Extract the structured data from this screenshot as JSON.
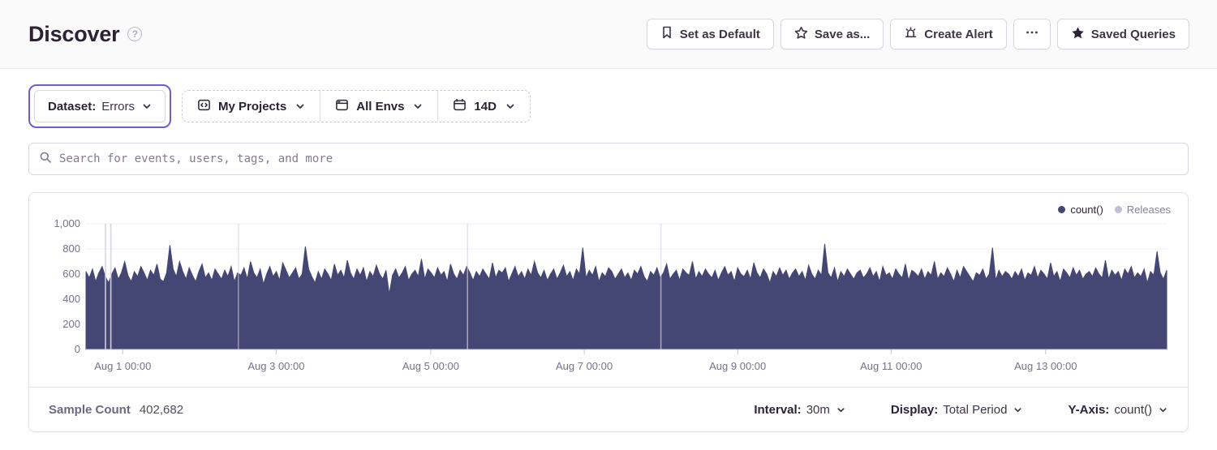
{
  "header": {
    "title": "Discover",
    "actions": [
      {
        "label": "Set as Default",
        "icon": "bookmark"
      },
      {
        "label": "Save as...",
        "icon": "star-outline"
      },
      {
        "label": "Create Alert",
        "icon": "siren"
      },
      {
        "label": "...",
        "icon": "ellipsis"
      },
      {
        "label": "Saved Queries",
        "icon": "star-filled"
      }
    ]
  },
  "filters": {
    "dataset": {
      "label": "Dataset:",
      "value": "Errors"
    },
    "projects": {
      "label": "My Projects"
    },
    "environments": {
      "label": "All Envs"
    },
    "date_range": {
      "label": "14D"
    }
  },
  "search": {
    "placeholder": "Search for events, users, tags, and more"
  },
  "chart_data": {
    "type": "area",
    "title": "",
    "xlabel": "",
    "ylabel": "",
    "ylim": [
      0,
      1000
    ],
    "grid": true,
    "legend_position": "top-right",
    "legend": [
      {
        "label": "count()",
        "color": "#444674"
      },
      {
        "label": "Releases",
        "color": "#C2BDD3"
      }
    ],
    "y_ticks": [
      {
        "value": 0,
        "label": "0"
      },
      {
        "value": 200,
        "label": "200"
      },
      {
        "value": 400,
        "label": "400"
      },
      {
        "value": 600,
        "label": "600"
      },
      {
        "value": 800,
        "label": "800"
      },
      {
        "value": 1000,
        "label": "1,000"
      }
    ],
    "x_ticks": [
      {
        "f": 0.034,
        "label": "Aug 1 00:00"
      },
      {
        "f": 0.176,
        "label": "Aug 3 00:00"
      },
      {
        "f": 0.319,
        "label": "Aug 5 00:00"
      },
      {
        "f": 0.461,
        "label": "Aug 7 00:00"
      },
      {
        "f": 0.603,
        "label": "Aug 9 00:00"
      },
      {
        "f": 0.745,
        "label": "Aug 11 00:00"
      },
      {
        "f": 0.888,
        "label": "Aug 13 00:00"
      }
    ],
    "releases": [
      {
        "f": 0.018,
        "opacity": 0.95
      },
      {
        "f": 0.023,
        "opacity": 0.95
      },
      {
        "f": 0.141,
        "opacity": 0.55
      },
      {
        "f": 0.353,
        "opacity": 0.65
      },
      {
        "f": 0.532,
        "opacity": 0.65
      }
    ],
    "series": [
      {
        "name": "count()",
        "color": "#444674",
        "values": [
          620,
          570,
          640,
          540,
          610,
          660,
          580,
          530,
          600,
          650,
          560,
          610,
          700,
          590,
          540,
          620,
          580,
          660,
          610,
          550,
          630,
          590,
          680,
          560,
          540,
          610,
          830,
          640,
          580,
          700,
          620,
          560,
          650,
          590,
          540,
          620,
          680,
          570,
          610,
          550,
          640,
          600,
          560,
          630,
          580,
          660,
          540,
          610,
          590,
          650,
          560,
          700,
          610,
          570,
          640,
          520,
          600,
          660,
          580,
          620,
          550,
          690,
          630,
          570,
          610,
          650,
          560,
          600,
          820,
          640,
          580,
          530,
          620,
          560,
          640,
          600,
          550,
          680,
          590,
          630,
          570,
          710,
          610,
          560,
          640,
          590,
          650,
          540,
          620,
          580,
          670,
          600,
          560,
          630,
          440,
          590,
          640,
          570,
          610,
          660,
          550,
          600,
          630,
          580,
          720,
          560,
          640,
          610,
          570,
          650,
          590,
          620,
          540,
          680,
          600,
          560,
          630,
          590,
          660,
          610,
          550,
          620,
          580,
          640,
          600,
          560,
          690,
          570,
          630,
          610,
          650,
          540,
          600,
          660,
          580,
          620,
          560,
          640,
          590,
          700,
          610,
          570,
          630,
          550,
          600,
          640,
          560,
          610,
          670,
          580,
          620,
          550,
          640,
          600,
          810,
          570,
          630,
          590,
          660,
          540,
          610,
          580,
          650,
          620,
          560,
          600,
          640,
          570,
          610,
          550,
          630,
          600,
          660,
          580,
          540,
          620,
          590,
          650,
          570,
          610,
          680,
          560,
          600,
          630,
          550,
          640,
          610,
          590,
          700,
          560,
          620,
          580,
          640,
          600,
          570,
          630,
          550,
          610,
          660,
          590,
          620,
          540,
          650,
          600,
          580,
          630,
          560,
          690,
          610,
          570,
          640,
          600,
          530,
          620,
          580,
          650,
          590,
          630,
          560,
          610,
          640,
          580,
          620,
          550,
          670,
          600,
          560,
          630,
          590,
          840,
          610,
          570,
          650,
          540,
          620,
          580,
          640,
          600,
          560,
          610,
          630,
          570,
          600,
          650,
          580,
          620,
          540,
          660,
          590,
          610,
          560,
          640,
          600,
          570,
          680,
          550,
          630,
          610,
          580,
          640,
          560,
          620,
          590,
          700,
          560,
          610,
          580,
          650,
          600,
          540,
          630,
          570,
          660,
          620,
          580,
          540,
          610,
          590,
          640,
          560,
          600,
          810,
          550,
          630,
          580,
          620,
          600,
          560,
          620,
          580,
          640,
          550,
          610,
          590,
          660,
          570,
          630,
          600,
          560,
          690,
          580,
          620,
          540,
          640,
          610,
          570,
          650,
          590,
          630,
          560,
          600,
          620,
          580,
          650,
          600,
          570,
          710,
          560,
          630,
          590,
          620,
          550,
          640,
          600,
          660,
          570,
          610,
          580,
          640,
          530,
          620,
          590,
          780,
          610,
          560,
          630
        ]
      }
    ],
    "colors": {
      "grid": "#EFEDF3",
      "axis_line": "#D1CBDB",
      "tick": "#C7C2D1",
      "release_line": "#D6D3E3"
    }
  },
  "footer": {
    "sample_count": {
      "label": "Sample Count",
      "value": "402,682"
    },
    "interval": {
      "label": "Interval:",
      "value": "30m"
    },
    "display": {
      "label": "Display:",
      "value": "Total Period"
    },
    "yaxis": {
      "label": "Y-Axis:",
      "value": "count()"
    }
  }
}
